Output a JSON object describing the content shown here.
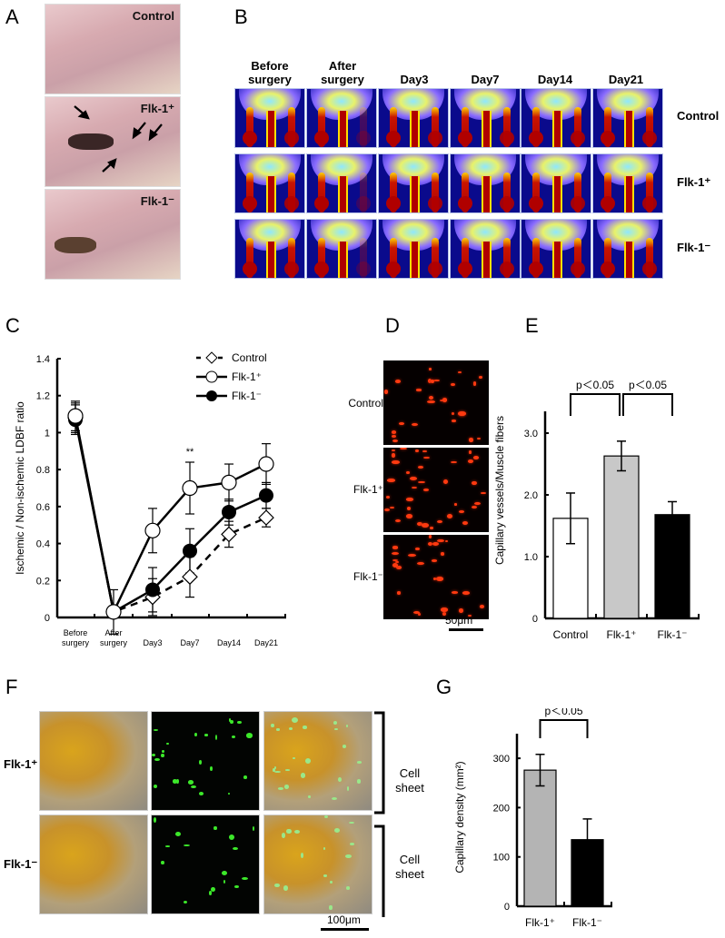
{
  "panels": {
    "A": {
      "letter": "A",
      "photos": [
        {
          "label": "Control"
        },
        {
          "label": "Flk-1⁺"
        },
        {
          "label": "Flk-1⁻"
        }
      ]
    },
    "B": {
      "letter": "B",
      "columns": [
        "Before surgery",
        "After surgery",
        "Day3",
        "Day7",
        "Day14",
        "Day21"
      ],
      "col_lines": [
        [
          "Before",
          "surgery"
        ],
        [
          "After",
          "surgery"
        ],
        [
          "Day3"
        ],
        [
          "Day7"
        ],
        [
          "Day14"
        ],
        [
          "Day21"
        ]
      ],
      "rows": [
        "Control",
        "Flk-1⁺",
        "Flk-1⁻"
      ]
    },
    "C": {
      "letter": "C"
    },
    "D": {
      "letter": "D",
      "rows": [
        "Control",
        "Flk-1⁺",
        "Flk-1⁻"
      ],
      "scale_bar": "50μm"
    },
    "E": {
      "letter": "E"
    },
    "F": {
      "letter": "F",
      "rows": [
        "Flk-1⁺",
        "Flk-1⁻"
      ],
      "bracket_label_1": "Cell",
      "bracket_label_2": "sheet",
      "scale_bar": "100μm"
    },
    "G": {
      "letter": "G"
    }
  },
  "chart_data": [
    {
      "id": "C",
      "type": "line",
      "title": "",
      "xlabel": "",
      "ylabel": "Ischemic / Non-ischemic LDBF ratio",
      "categories": [
        "Before surgery",
        "After surgery",
        "Day3",
        "Day7",
        "Day14",
        "Day21"
      ],
      "ylim": [
        0,
        1.4
      ],
      "yticks": [
        "0",
        "0.2",
        "0.4",
        "0.6",
        "0.8",
        "1",
        "1.2",
        "1.4"
      ],
      "grid": false,
      "legend_position": "top-right",
      "annotations": [
        {
          "text": "**",
          "at": "Day7"
        }
      ],
      "series": [
        {
          "name": "Control",
          "marker": "open-diamond",
          "line": "dashed",
          "values": [
            1.08,
            0.03,
            0.11,
            0.22,
            0.45,
            0.54
          ],
          "errors": [
            0.08,
            0.0,
            0.1,
            0.11,
            0.07,
            0.05
          ]
        },
        {
          "name": "Flk-1⁺",
          "marker": "open-circle",
          "line": "solid",
          "values": [
            1.09,
            0.03,
            0.47,
            0.7,
            0.73,
            0.83
          ],
          "errors": [
            0.08,
            0.12,
            0.12,
            0.14,
            0.1,
            0.11
          ]
        },
        {
          "name": "Flk-1⁻",
          "marker": "filled-circle",
          "line": "solid",
          "values": [
            1.07,
            0.03,
            0.15,
            0.36,
            0.57,
            0.66
          ],
          "errors": [
            0.08,
            0.0,
            0.12,
            0.12,
            0.07,
            0.07
          ]
        }
      ]
    },
    {
      "id": "E",
      "type": "bar",
      "title": "",
      "xlabel": "",
      "ylabel": "Capillary vessels/Muscle fibers",
      "categories": [
        "Control",
        "Flk-1⁺",
        "Flk-1⁻"
      ],
      "values": [
        1.62,
        2.63,
        1.68
      ],
      "errors": [
        0.41,
        0.24,
        0.21
      ],
      "colors": [
        "#ffffff",
        "#c8c8c8",
        "#000000"
      ],
      "ylim": [
        0,
        3.5
      ],
      "yticks": [
        "0",
        "1.0",
        "2.0",
        "3.0"
      ],
      "annotations": [
        {
          "text": "p<0.05",
          "between": [
            "Control",
            "Flk-1⁺"
          ]
        },
        {
          "text": "p<0.05",
          "between": [
            "Flk-1⁺",
            "Flk-1⁻"
          ]
        }
      ]
    },
    {
      "id": "G",
      "type": "bar",
      "title": "",
      "xlabel": "",
      "ylabel": "Capillary density (mm²)",
      "categories": [
        "Flk-1⁺",
        "Flk-1⁻"
      ],
      "values": [
        276,
        135
      ],
      "errors": [
        32,
        42
      ],
      "colors": [
        "#b4b4b4",
        "#000000"
      ],
      "ylim": [
        0,
        350
      ],
      "yticks": [
        "0",
        "100",
        "200",
        "300"
      ],
      "annotations": [
        {
          "text": "p<0.05",
          "between": [
            "Flk-1⁺",
            "Flk-1⁻"
          ]
        }
      ]
    }
  ]
}
